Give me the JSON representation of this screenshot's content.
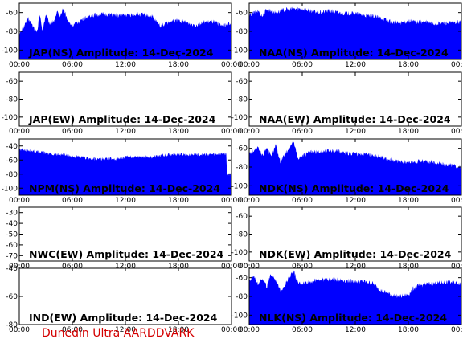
{
  "footer": "Dunedin Ultra AARDDVARK",
  "xticks": [
    "00:00",
    "06:00",
    "12:00",
    "18:00",
    "00:00"
  ],
  "chart_data": [
    {
      "type": "area",
      "title": "JAP(NS) Amplitude: 14-Dec-2024",
      "yticks": [
        "-60",
        "-80",
        "-100"
      ],
      "ylim": [
        -110,
        -50
      ],
      "color": "#0000ff",
      "series": {
        "x": [
          0,
          1,
          2,
          2.3,
          2.6,
          3,
          3.5,
          4,
          4.3,
          4.6,
          5,
          5.5,
          6,
          7,
          8,
          9,
          10,
          11,
          12,
          13,
          14,
          14.5,
          15,
          15.5,
          16,
          17,
          18,
          19,
          20,
          21,
          22,
          23,
          24
        ],
        "y": [
          -84,
          -66,
          -82,
          -62,
          -78,
          -64,
          -72,
          -68,
          -60,
          -64,
          -55,
          -70,
          -74,
          -68,
          -63,
          -62,
          -62,
          -63,
          -63,
          -62,
          -62,
          -63,
          -64,
          -70,
          -74,
          -70,
          -68,
          -71,
          -73,
          -70,
          -70,
          -74,
          -71
        ]
      }
    },
    {
      "type": "area",
      "title": "NAA(NS) Amplitude: 14-Dec-2024",
      "yticks": [
        "-60",
        "-80",
        "-100"
      ],
      "ylim": [
        -110,
        -50
      ],
      "color": "#0000ff",
      "series": {
        "x": [
          0,
          1,
          1.5,
          2,
          3,
          4,
          5,
          6,
          7,
          8,
          9,
          10,
          11,
          12,
          13,
          14,
          15,
          16,
          17,
          18,
          19,
          20,
          21,
          22,
          23,
          24
        ],
        "y": [
          -63,
          -58,
          -64,
          -56,
          -60,
          -57,
          -56,
          -56,
          -58,
          -60,
          -58,
          -60,
          -61,
          -61,
          -63,
          -64,
          -66,
          -70,
          -71,
          -69,
          -70,
          -70,
          -72,
          -71,
          -71,
          -70
        ]
      }
    },
    {
      "type": "area",
      "title": "JAP(EW) Amplitude: 14-Dec-2024",
      "yticks": [
        "-60",
        "-80",
        "-100"
      ],
      "ylim": [
        -110,
        -50
      ],
      "color": "#0000ff",
      "series": {
        "x": [],
        "y": []
      }
    },
    {
      "type": "area",
      "title": "NAA(EW) Amplitude: 14-Dec-2024",
      "yticks": [
        "-60",
        "-80",
        "-100"
      ],
      "ylim": [
        -110,
        -50
      ],
      "color": "#0000ff",
      "series": {
        "x": [],
        "y": []
      }
    },
    {
      "type": "area",
      "title": "NPM(NS) Amplitude: 14-Dec-2024",
      "yticks": [
        "-40",
        "-60",
        "-80",
        "-100"
      ],
      "ylim": [
        -110,
        -30
      ],
      "color": "#0000ff",
      "series": {
        "x": [
          0,
          1,
          2,
          3,
          4,
          5,
          6,
          7,
          8,
          9,
          10,
          11,
          12,
          13,
          14,
          15,
          16,
          17,
          18,
          19,
          20,
          21,
          22,
          23,
          23.4,
          23.5,
          24
        ],
        "y": [
          -45,
          -46,
          -48,
          -50,
          -52,
          -52,
          -55,
          -56,
          -58,
          -59,
          -58,
          -58,
          -56,
          -55,
          -55,
          -56,
          -54,
          -52,
          -52,
          -52,
          -52,
          -52,
          -52,
          -51,
          -51,
          -80,
          -80
        ]
      }
    },
    {
      "type": "area",
      "title": "NDK(NS) Amplitude: 14-Dec-2024",
      "yticks": [
        "-60",
        "-80",
        "-100"
      ],
      "ylim": [
        -110,
        -50
      ],
      "color": "#0000ff",
      "series": {
        "x": [
          0,
          0.5,
          1,
          1.5,
          2,
          2.5,
          3,
          3.5,
          4,
          4.5,
          5,
          5.5,
          6,
          7,
          8,
          9,
          10,
          11,
          12,
          13,
          14,
          15,
          16,
          17,
          18,
          19,
          20,
          21,
          22,
          23,
          24
        ],
        "y": [
          -66,
          -62,
          -60,
          -68,
          -58,
          -70,
          -56,
          -74,
          -66,
          -60,
          -52,
          -70,
          -68,
          -64,
          -64,
          -62,
          -63,
          -65,
          -66,
          -66,
          -67,
          -70,
          -72,
          -74,
          -75,
          -74,
          -74,
          -75,
          -77,
          -78,
          -80
        ]
      }
    },
    {
      "type": "area",
      "title": "NWC(EW) Amplitude: 14-Dec-2024",
      "yticks": [
        "-30",
        "-40",
        "-50",
        "-60",
        "-70"
      ],
      "ylim": [
        -75,
        -25
      ],
      "color": "#0000ff",
      "series": {
        "x": [],
        "y": []
      }
    },
    {
      "type": "area",
      "title": "NDK(EW) Amplitude: 14-Dec-2024",
      "yticks": [
        "-60",
        "-80",
        "-100"
      ],
      "ylim": [
        -110,
        -50
      ],
      "color": "#0000ff",
      "series": {
        "x": [],
        "y": []
      }
    },
    {
      "type": "area",
      "title": "IND(EW) Amplitude: 14-Dec-2024",
      "yticks": [
        "-40",
        "-60",
        "-80"
      ],
      "ylim": [
        -80,
        -40
      ],
      "color": "#0000ff",
      "series": {
        "x": [],
        "y": []
      }
    },
    {
      "type": "area",
      "title": "NLK(NS) Amplitude: 14-Dec-2024",
      "yticks": [
        "-60",
        "-80",
        "-100"
      ],
      "ylim": [
        -110,
        -50
      ],
      "color": "#0000ff",
      "series": {
        "x": [
          0,
          0.5,
          1,
          1.5,
          2,
          2.5,
          3,
          3.5,
          4,
          4.5,
          5,
          5.5,
          6,
          7,
          8,
          9,
          10,
          11,
          12,
          13,
          14,
          15,
          16,
          17,
          18,
          18.5,
          19,
          20,
          21,
          22,
          23,
          24
        ],
        "y": [
          -64,
          -58,
          -66,
          -60,
          -70,
          -56,
          -62,
          -74,
          -68,
          -60,
          -52,
          -66,
          -66,
          -64,
          -62,
          -62,
          -62,
          -63,
          -64,
          -64,
          -66,
          -74,
          -78,
          -80,
          -78,
          -72,
          -69,
          -67,
          -66,
          -65,
          -65,
          -66
        ]
      }
    }
  ]
}
